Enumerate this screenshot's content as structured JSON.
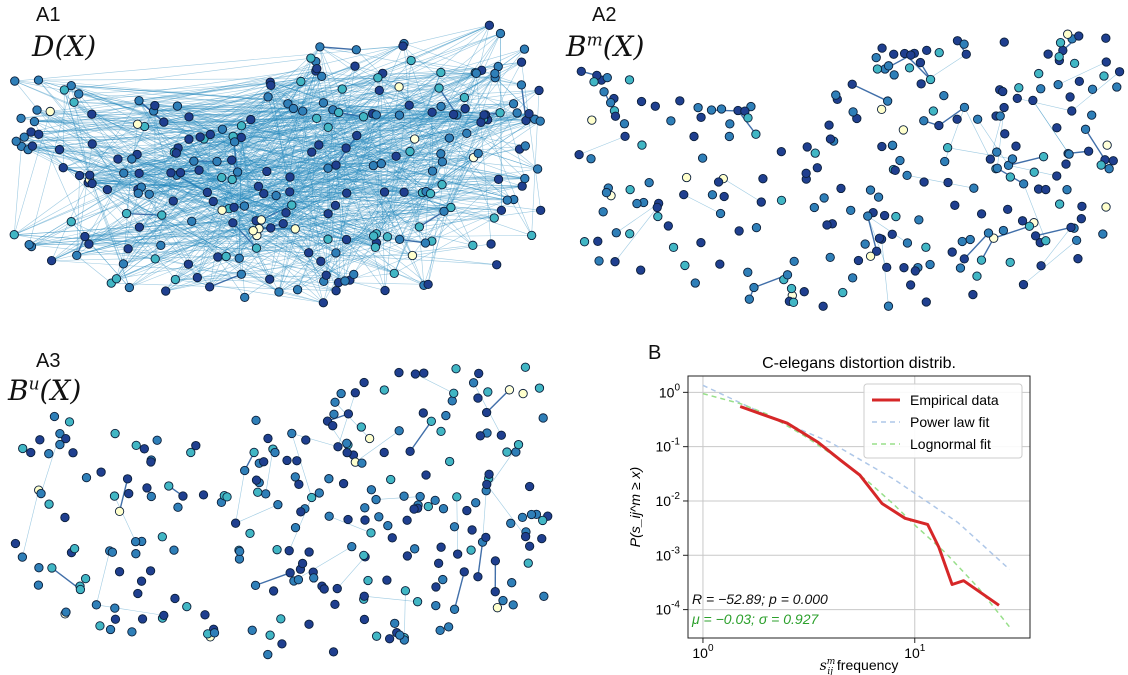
{
  "panels": [
    {
      "id": "A1",
      "letter": "A1",
      "math_main": "D(X)",
      "math_sup": ""
    },
    {
      "id": "A2",
      "letter": "A2",
      "math_main": "B",
      "math_sup": "m",
      "math_tail": "(X)"
    },
    {
      "id": "A3",
      "letter": "A3",
      "math_main": "B",
      "math_sup": "u",
      "math_tail": "(X)"
    }
  ],
  "colors": {
    "node_dark": "#1f3f8f",
    "node_mid": "#2f7fb8",
    "node_teal": "#41b6c4",
    "node_light": "#ffffcc",
    "edge": "#2b8cbe",
    "empirical": "#d62728",
    "power_law": "#aec7e8",
    "lognormal": "#98df8a",
    "stats_r": "#111111",
    "stats_mu": "#2ca02c"
  },
  "panel_b": {
    "letter": "B",
    "chart_data": {
      "type": "line",
      "title": "C-elegans distortion distrib.",
      "xlabel_math": "s",
      "xlabel_sup": "m",
      "xlabel_sub": "ij",
      "xlabel_text": " frequency",
      "ylabel": "P(s_ij^m ≥ x)",
      "xscale": "log",
      "yscale": "log",
      "xlim": [
        0.85,
        35
      ],
      "ylim": [
        3e-05,
        2.0
      ],
      "grid": true,
      "legend_position": "top-right",
      "x_ticks": [
        {
          "value": 1,
          "label": "10",
          "exp": "0"
        },
        {
          "value": 10,
          "label": "10",
          "exp": "1"
        }
      ],
      "y_ticks": [
        {
          "value": 1,
          "label": "10",
          "exp": "0"
        },
        {
          "value": 0.1,
          "label": "10",
          "exp": "-1"
        },
        {
          "value": 0.01,
          "label": "10",
          "exp": "-2"
        },
        {
          "value": 0.001,
          "label": "10",
          "exp": "-3"
        },
        {
          "value": 0.0001,
          "label": "10",
          "exp": "-4"
        }
      ],
      "series": [
        {
          "name": "Empirical data",
          "style": "solid",
          "x": [
            1.5,
            2.5,
            3.5,
            4.5,
            5.5,
            7,
            9,
            11.5,
            13,
            15,
            17,
            25
          ],
          "y": [
            0.55,
            0.27,
            0.12,
            0.055,
            0.03,
            0.009,
            0.0048,
            0.0037,
            0.0014,
            0.00029,
            0.00034,
            0.00012
          ]
        },
        {
          "name": "Power law fit",
          "style": "dashed",
          "x": [
            1,
            2,
            4,
            8,
            16,
            28
          ],
          "y": [
            1.35,
            0.38,
            0.12,
            0.025,
            0.004,
            0.00055
          ]
        },
        {
          "name": "Lognormal fit",
          "style": "dashed",
          "x": [
            1,
            1.5,
            2,
            3,
            4,
            6,
            8,
            10,
            14,
            20,
            28
          ],
          "y": [
            0.95,
            0.62,
            0.4,
            0.16,
            0.075,
            0.023,
            0.0085,
            0.0036,
            0.0011,
            0.00025,
            4.8e-05
          ]
        }
      ],
      "stats_line_1": "R = −52.89; p = 0.000",
      "stats_line_2": "μ = −0.03; σ = 0.927"
    }
  }
}
